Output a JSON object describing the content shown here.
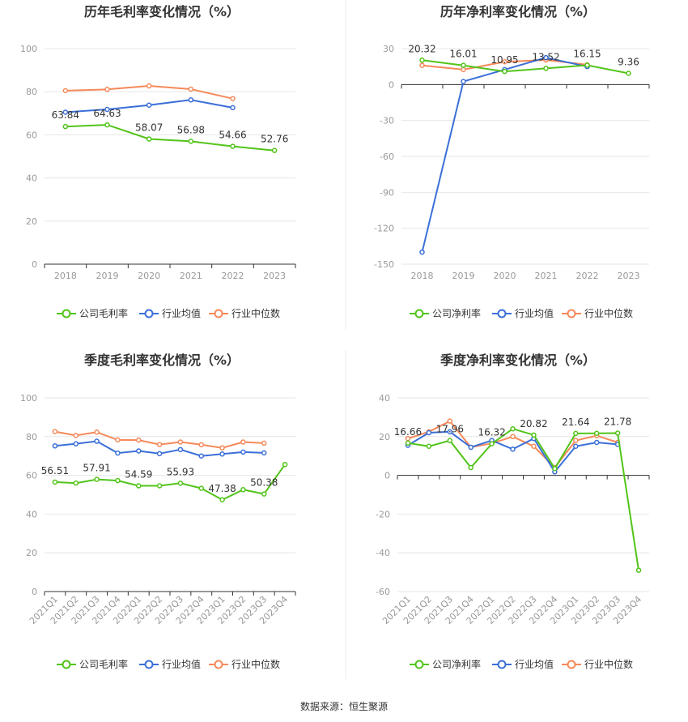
{
  "colors": {
    "company": "#52c41a",
    "avg": "#3b6fd8",
    "median": "#f5895a"
  },
  "source": "数据来源：恒生聚源",
  "chart_data": [
    {
      "type": "line",
      "title": "历年毛利率变化情况（%）",
      "categories": [
        "2018",
        "2019",
        "2020",
        "2021",
        "2022",
        "2023"
      ],
      "ylim": [
        0,
        100
      ],
      "yticks": [
        0,
        20,
        40,
        60,
        80,
        100
      ],
      "series": [
        {
          "name": "公司毛利率",
          "color": "#52c41a",
          "values": [
            63.84,
            64.63,
            58.07,
            56.98,
            54.66,
            52.76
          ],
          "labels": [
            "63.84",
            "64.63",
            "58.07",
            "56.98",
            "54.66",
            "52.76"
          ]
        },
        {
          "name": "行业均值",
          "color": "#3b6fd8",
          "values": [
            70.5,
            71.8,
            73.8,
            76.2,
            72.6,
            null
          ]
        },
        {
          "name": "行业中位数",
          "color": "#f5895a",
          "values": [
            80.5,
            81.1,
            82.7,
            81.2,
            76.8,
            null
          ]
        }
      ]
    },
    {
      "type": "line",
      "title": "历年净利率变化情况（%）",
      "categories": [
        "2018",
        "2019",
        "2020",
        "2021",
        "2022",
        "2023"
      ],
      "ylim": [
        -150,
        30
      ],
      "yticks": [
        -150,
        -120,
        -90,
        -60,
        -30,
        0,
        30
      ],
      "series": [
        {
          "name": "公司净利率",
          "color": "#52c41a",
          "values": [
            20.32,
            16.01,
            10.95,
            13.52,
            16.15,
            9.36
          ],
          "labels": [
            "20.32",
            "16.01",
            "10.95",
            "13.52",
            "16.15",
            "9.36"
          ]
        },
        {
          "name": "行业均值",
          "color": "#3b6fd8",
          "values": [
            -140.0,
            2.5,
            12.5,
            22.5,
            15.0,
            null
          ]
        },
        {
          "name": "行业中位数",
          "color": "#f5895a",
          "values": [
            16.0,
            12.5,
            19.0,
            20.5,
            16.5,
            null
          ]
        }
      ]
    },
    {
      "type": "line",
      "title": "季度毛利率变化情况（%）",
      "categories": [
        "2021Q1",
        "2021Q2",
        "2021Q3",
        "2021Q4",
        "2022Q1",
        "2022Q2",
        "2022Q3",
        "2022Q4",
        "2023Q1",
        "2023Q2",
        "2023Q3",
        "2023Q4"
      ],
      "ylim": [
        0,
        100
      ],
      "yticks": [
        0,
        20,
        40,
        60,
        80,
        100
      ],
      "series": [
        {
          "name": "公司毛利率",
          "color": "#52c41a",
          "values": [
            56.51,
            56.0,
            57.91,
            57.3,
            54.59,
            54.6,
            55.93,
            53.3,
            47.38,
            52.6,
            50.38,
            65.6
          ],
          "labels": [
            "56.51",
            null,
            "57.91",
            null,
            "54.59",
            null,
            "55.93",
            null,
            "47.38",
            null,
            "50.38",
            null
          ]
        },
        {
          "name": "行业均值",
          "color": "#3b6fd8",
          "values": [
            75.2,
            76.3,
            77.6,
            71.5,
            72.6,
            71.2,
            73.3,
            70.0,
            71.0,
            72.0,
            71.6,
            null
          ]
        },
        {
          "name": "行业中位数",
          "color": "#f5895a",
          "values": [
            82.6,
            80.6,
            82.3,
            78.3,
            78.2,
            75.9,
            77.2,
            75.8,
            74.2,
            77.2,
            76.6,
            null
          ]
        }
      ]
    },
    {
      "type": "line",
      "title": "季度净利率变化情况（%）",
      "categories": [
        "2021Q1",
        "2021Q2",
        "2021Q3",
        "2021Q4",
        "2022Q1",
        "2022Q2",
        "2022Q3",
        "2022Q4",
        "2023Q1",
        "2023Q2",
        "2023Q3",
        "2023Q4"
      ],
      "ylim": [
        -60,
        40
      ],
      "yticks": [
        -60,
        -40,
        -20,
        0,
        20,
        40
      ],
      "series": [
        {
          "name": "公司净利率",
          "color": "#52c41a",
          "values": [
            16.66,
            15.0,
            17.96,
            4.0,
            16.32,
            24.0,
            20.82,
            3.5,
            21.64,
            21.7,
            21.78,
            -49.0
          ],
          "labels": [
            "16.66",
            null,
            "17.96",
            null,
            "16.32",
            null,
            "20.82",
            null,
            "21.64",
            null,
            "21.78",
            null
          ]
        },
        {
          "name": "行业均值",
          "color": "#3b6fd8",
          "values": [
            15.5,
            22.0,
            22.5,
            14.5,
            18.0,
            13.5,
            19.0,
            1.8,
            15.0,
            17.0,
            16.0,
            null
          ]
        },
        {
          "name": "行业中位数",
          "color": "#f5895a",
          "values": [
            19.0,
            22.5,
            28.0,
            14.5,
            16.5,
            20.0,
            15.0,
            4.0,
            18.0,
            20.5,
            17.0,
            null
          ]
        }
      ]
    }
  ]
}
